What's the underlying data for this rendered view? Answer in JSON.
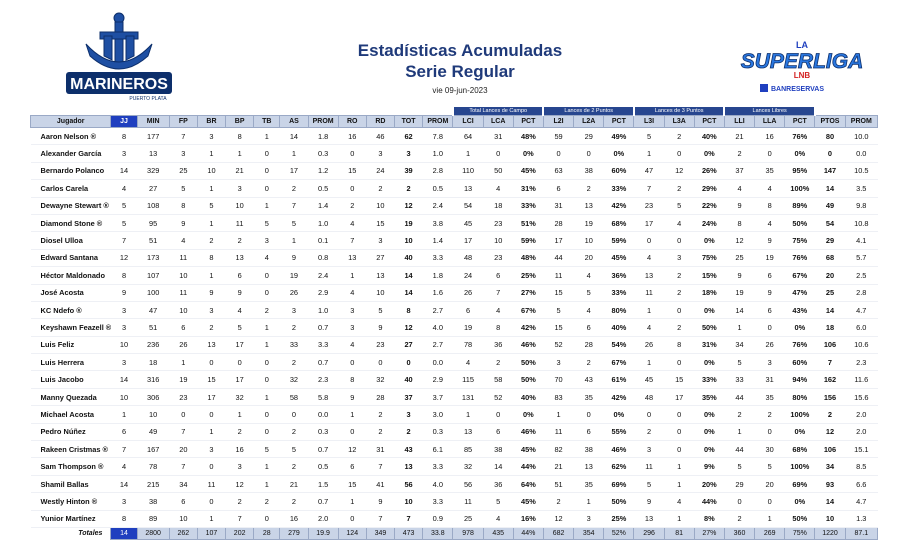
{
  "header": {
    "title_line1": "Estadísticas Acumuladas",
    "title_line2": "Serie Regular",
    "date": "vie 09-jun-2023",
    "left_logo_text": "MARINEROS",
    "left_logo_subtext": "PUERTO PLATA",
    "right_logo_text_top": "LA",
    "right_logo_text_main": "SUPERLIGA",
    "right_logo_text_sub": "LNB",
    "right_logo_sponsor": "BANRESERVAS"
  },
  "table": {
    "group_headers": [
      "Total Lances de Campo",
      "Lances de 2 Puntos",
      "Lances de 3 Puntos",
      "Lances Libres"
    ],
    "columns": [
      "Jugador",
      "JJ",
      "MIN",
      "FP",
      "BR",
      "BP",
      "TB",
      "AS",
      "PROM",
      "RO",
      "RD",
      "TOT",
      "PROM",
      "LCI",
      "LCA",
      "PCT",
      "L2I",
      "L2A",
      "PCT",
      "L3I",
      "L3A",
      "PCT",
      "LLI",
      "LLA",
      "PCT",
      "PTOS",
      "PROM"
    ],
    "rows": [
      [
        "Aaron Nelson ®",
        "8",
        "177",
        "7",
        "3",
        "8",
        "1",
        "14",
        "1.8",
        "16",
        "46",
        "62",
        "7.8",
        "64",
        "31",
        "48%",
        "59",
        "29",
        "49%",
        "5",
        "2",
        "40%",
        "21",
        "16",
        "76%",
        "80",
        "10.0"
      ],
      [
        "Alexander García",
        "3",
        "13",
        "3",
        "1",
        "1",
        "0",
        "1",
        "0.3",
        "0",
        "3",
        "3",
        "1.0",
        "1",
        "0",
        "0%",
        "0",
        "0",
        "0%",
        "1",
        "0",
        "0%",
        "2",
        "0",
        "0%",
        "0",
        "0.0"
      ],
      [
        "Bernardo Polanco",
        "14",
        "329",
        "25",
        "10",
        "21",
        "0",
        "17",
        "1.2",
        "15",
        "24",
        "39",
        "2.8",
        "110",
        "50",
        "45%",
        "63",
        "38",
        "60%",
        "47",
        "12",
        "26%",
        "37",
        "35",
        "95%",
        "147",
        "10.5"
      ],
      [
        "Carlos Carela",
        "4",
        "27",
        "5",
        "1",
        "3",
        "0",
        "2",
        "0.5",
        "0",
        "2",
        "2",
        "0.5",
        "13",
        "4",
        "31%",
        "6",
        "2",
        "33%",
        "7",
        "2",
        "29%",
        "4",
        "4",
        "100%",
        "14",
        "3.5"
      ],
      [
        "Dewayne Stewart ®",
        "5",
        "108",
        "8",
        "5",
        "10",
        "1",
        "7",
        "1.4",
        "2",
        "10",
        "12",
        "2.4",
        "54",
        "18",
        "33%",
        "31",
        "13",
        "42%",
        "23",
        "5",
        "22%",
        "9",
        "8",
        "89%",
        "49",
        "9.8"
      ],
      [
        "Diamond Stone ®",
        "5",
        "95",
        "9",
        "1",
        "11",
        "5",
        "5",
        "1.0",
        "4",
        "15",
        "19",
        "3.8",
        "45",
        "23",
        "51%",
        "28",
        "19",
        "68%",
        "17",
        "4",
        "24%",
        "8",
        "4",
        "50%",
        "54",
        "10.8"
      ],
      [
        "Diosel Ulloa",
        "7",
        "51",
        "4",
        "2",
        "2",
        "3",
        "1",
        "0.1",
        "7",
        "3",
        "10",
        "1.4",
        "17",
        "10",
        "59%",
        "17",
        "10",
        "59%",
        "0",
        "0",
        "0%",
        "12",
        "9",
        "75%",
        "29",
        "4.1"
      ],
      [
        "Edward Santana",
        "12",
        "173",
        "11",
        "8",
        "13",
        "4",
        "9",
        "0.8",
        "13",
        "27",
        "40",
        "3.3",
        "48",
        "23",
        "48%",
        "44",
        "20",
        "45%",
        "4",
        "3",
        "75%",
        "25",
        "19",
        "76%",
        "68",
        "5.7"
      ],
      [
        "Héctor Maldonado",
        "8",
        "107",
        "10",
        "1",
        "6",
        "0",
        "19",
        "2.4",
        "1",
        "13",
        "14",
        "1.8",
        "24",
        "6",
        "25%",
        "11",
        "4",
        "36%",
        "13",
        "2",
        "15%",
        "9",
        "6",
        "67%",
        "20",
        "2.5"
      ],
      [
        "José Acosta",
        "9",
        "100",
        "11",
        "9",
        "9",
        "0",
        "26",
        "2.9",
        "4",
        "10",
        "14",
        "1.6",
        "26",
        "7",
        "27%",
        "15",
        "5",
        "33%",
        "11",
        "2",
        "18%",
        "19",
        "9",
        "47%",
        "25",
        "2.8"
      ],
      [
        "KC Ndefo ®",
        "3",
        "47",
        "10",
        "3",
        "4",
        "2",
        "3",
        "1.0",
        "3",
        "5",
        "8",
        "2.7",
        "6",
        "4",
        "67%",
        "5",
        "4",
        "80%",
        "1",
        "0",
        "0%",
        "14",
        "6",
        "43%",
        "14",
        "4.7"
      ],
      [
        "Keyshawn Feazell ®",
        "3",
        "51",
        "6",
        "2",
        "5",
        "1",
        "2",
        "0.7",
        "3",
        "9",
        "12",
        "4.0",
        "19",
        "8",
        "42%",
        "15",
        "6",
        "40%",
        "4",
        "2",
        "50%",
        "1",
        "0",
        "0%",
        "18",
        "6.0"
      ],
      [
        "Luis Feliz",
        "10",
        "236",
        "26",
        "13",
        "17",
        "1",
        "33",
        "3.3",
        "4",
        "23",
        "27",
        "2.7",
        "78",
        "36",
        "46%",
        "52",
        "28",
        "54%",
        "26",
        "8",
        "31%",
        "34",
        "26",
        "76%",
        "106",
        "10.6"
      ],
      [
        "Luis Herrera",
        "3",
        "18",
        "1",
        "0",
        "0",
        "0",
        "2",
        "0.7",
        "0",
        "0",
        "0",
        "0.0",
        "4",
        "2",
        "50%",
        "3",
        "2",
        "67%",
        "1",
        "0",
        "0%",
        "5",
        "3",
        "60%",
        "7",
        "2.3"
      ],
      [
        "Luis Jacobo",
        "14",
        "316",
        "19",
        "15",
        "17",
        "0",
        "32",
        "2.3",
        "8",
        "32",
        "40",
        "2.9",
        "115",
        "58",
        "50%",
        "70",
        "43",
        "61%",
        "45",
        "15",
        "33%",
        "33",
        "31",
        "94%",
        "162",
        "11.6"
      ],
      [
        "Manny Quezada",
        "10",
        "306",
        "23",
        "17",
        "32",
        "1",
        "58",
        "5.8",
        "9",
        "28",
        "37",
        "3.7",
        "131",
        "52",
        "40%",
        "83",
        "35",
        "42%",
        "48",
        "17",
        "35%",
        "44",
        "35",
        "80%",
        "156",
        "15.6"
      ],
      [
        "Michael Acosta",
        "1",
        "10",
        "0",
        "0",
        "1",
        "0",
        "0",
        "0.0",
        "1",
        "2",
        "3",
        "3.0",
        "1",
        "0",
        "0%",
        "1",
        "0",
        "0%",
        "0",
        "0",
        "0%",
        "2",
        "2",
        "100%",
        "2",
        "2.0"
      ],
      [
        "Pedro Núñez",
        "6",
        "49",
        "7",
        "1",
        "2",
        "0",
        "2",
        "0.3",
        "0",
        "2",
        "2",
        "0.3",
        "13",
        "6",
        "46%",
        "11",
        "6",
        "55%",
        "2",
        "0",
        "0%",
        "1",
        "0",
        "0%",
        "12",
        "2.0"
      ],
      [
        "Rakeen Cristmas ®",
        "7",
        "167",
        "20",
        "3",
        "16",
        "5",
        "5",
        "0.7",
        "12",
        "31",
        "43",
        "6.1",
        "85",
        "38",
        "45%",
        "82",
        "38",
        "46%",
        "3",
        "0",
        "0%",
        "44",
        "30",
        "68%",
        "106",
        "15.1"
      ],
      [
        "Sam Thompson ®",
        "4",
        "78",
        "7",
        "0",
        "3",
        "1",
        "2",
        "0.5",
        "6",
        "7",
        "13",
        "3.3",
        "32",
        "14",
        "44%",
        "21",
        "13",
        "62%",
        "11",
        "1",
        "9%",
        "5",
        "5",
        "100%",
        "34",
        "8.5"
      ],
      [
        "Shamil Ballas",
        "14",
        "215",
        "34",
        "11",
        "12",
        "1",
        "21",
        "1.5",
        "15",
        "41",
        "56",
        "4.0",
        "56",
        "36",
        "64%",
        "51",
        "35",
        "69%",
        "5",
        "1",
        "20%",
        "29",
        "20",
        "69%",
        "93",
        "6.6"
      ],
      [
        "Westly Hinton ®",
        "3",
        "38",
        "6",
        "0",
        "2",
        "2",
        "2",
        "0.7",
        "1",
        "9",
        "10",
        "3.3",
        "11",
        "5",
        "45%",
        "2",
        "1",
        "50%",
        "9",
        "4",
        "44%",
        "0",
        "0",
        "0%",
        "14",
        "4.7"
      ],
      [
        "Yunior Martínez",
        "8",
        "89",
        "10",
        "1",
        "7",
        "0",
        "16",
        "2.0",
        "0",
        "7",
        "7",
        "0.9",
        "25",
        "4",
        "16%",
        "12",
        "3",
        "25%",
        "13",
        "1",
        "8%",
        "2",
        "1",
        "50%",
        "10",
        "1.3"
      ]
    ],
    "totals": [
      "Totales",
      "14",
      "2800",
      "262",
      "107",
      "202",
      "28",
      "279",
      "19.9",
      "124",
      "349",
      "473",
      "33.8",
      "978",
      "435",
      "44%",
      "682",
      "354",
      "52%",
      "296",
      "81",
      "27%",
      "360",
      "269",
      "75%",
      "1220",
      "87.1"
    ]
  },
  "colors": {
    "header_blue": "#1f3fbf",
    "group_blue": "#27468f",
    "header_fill": "#c9d4e7",
    "title_blue": "#1f3a7a"
  }
}
